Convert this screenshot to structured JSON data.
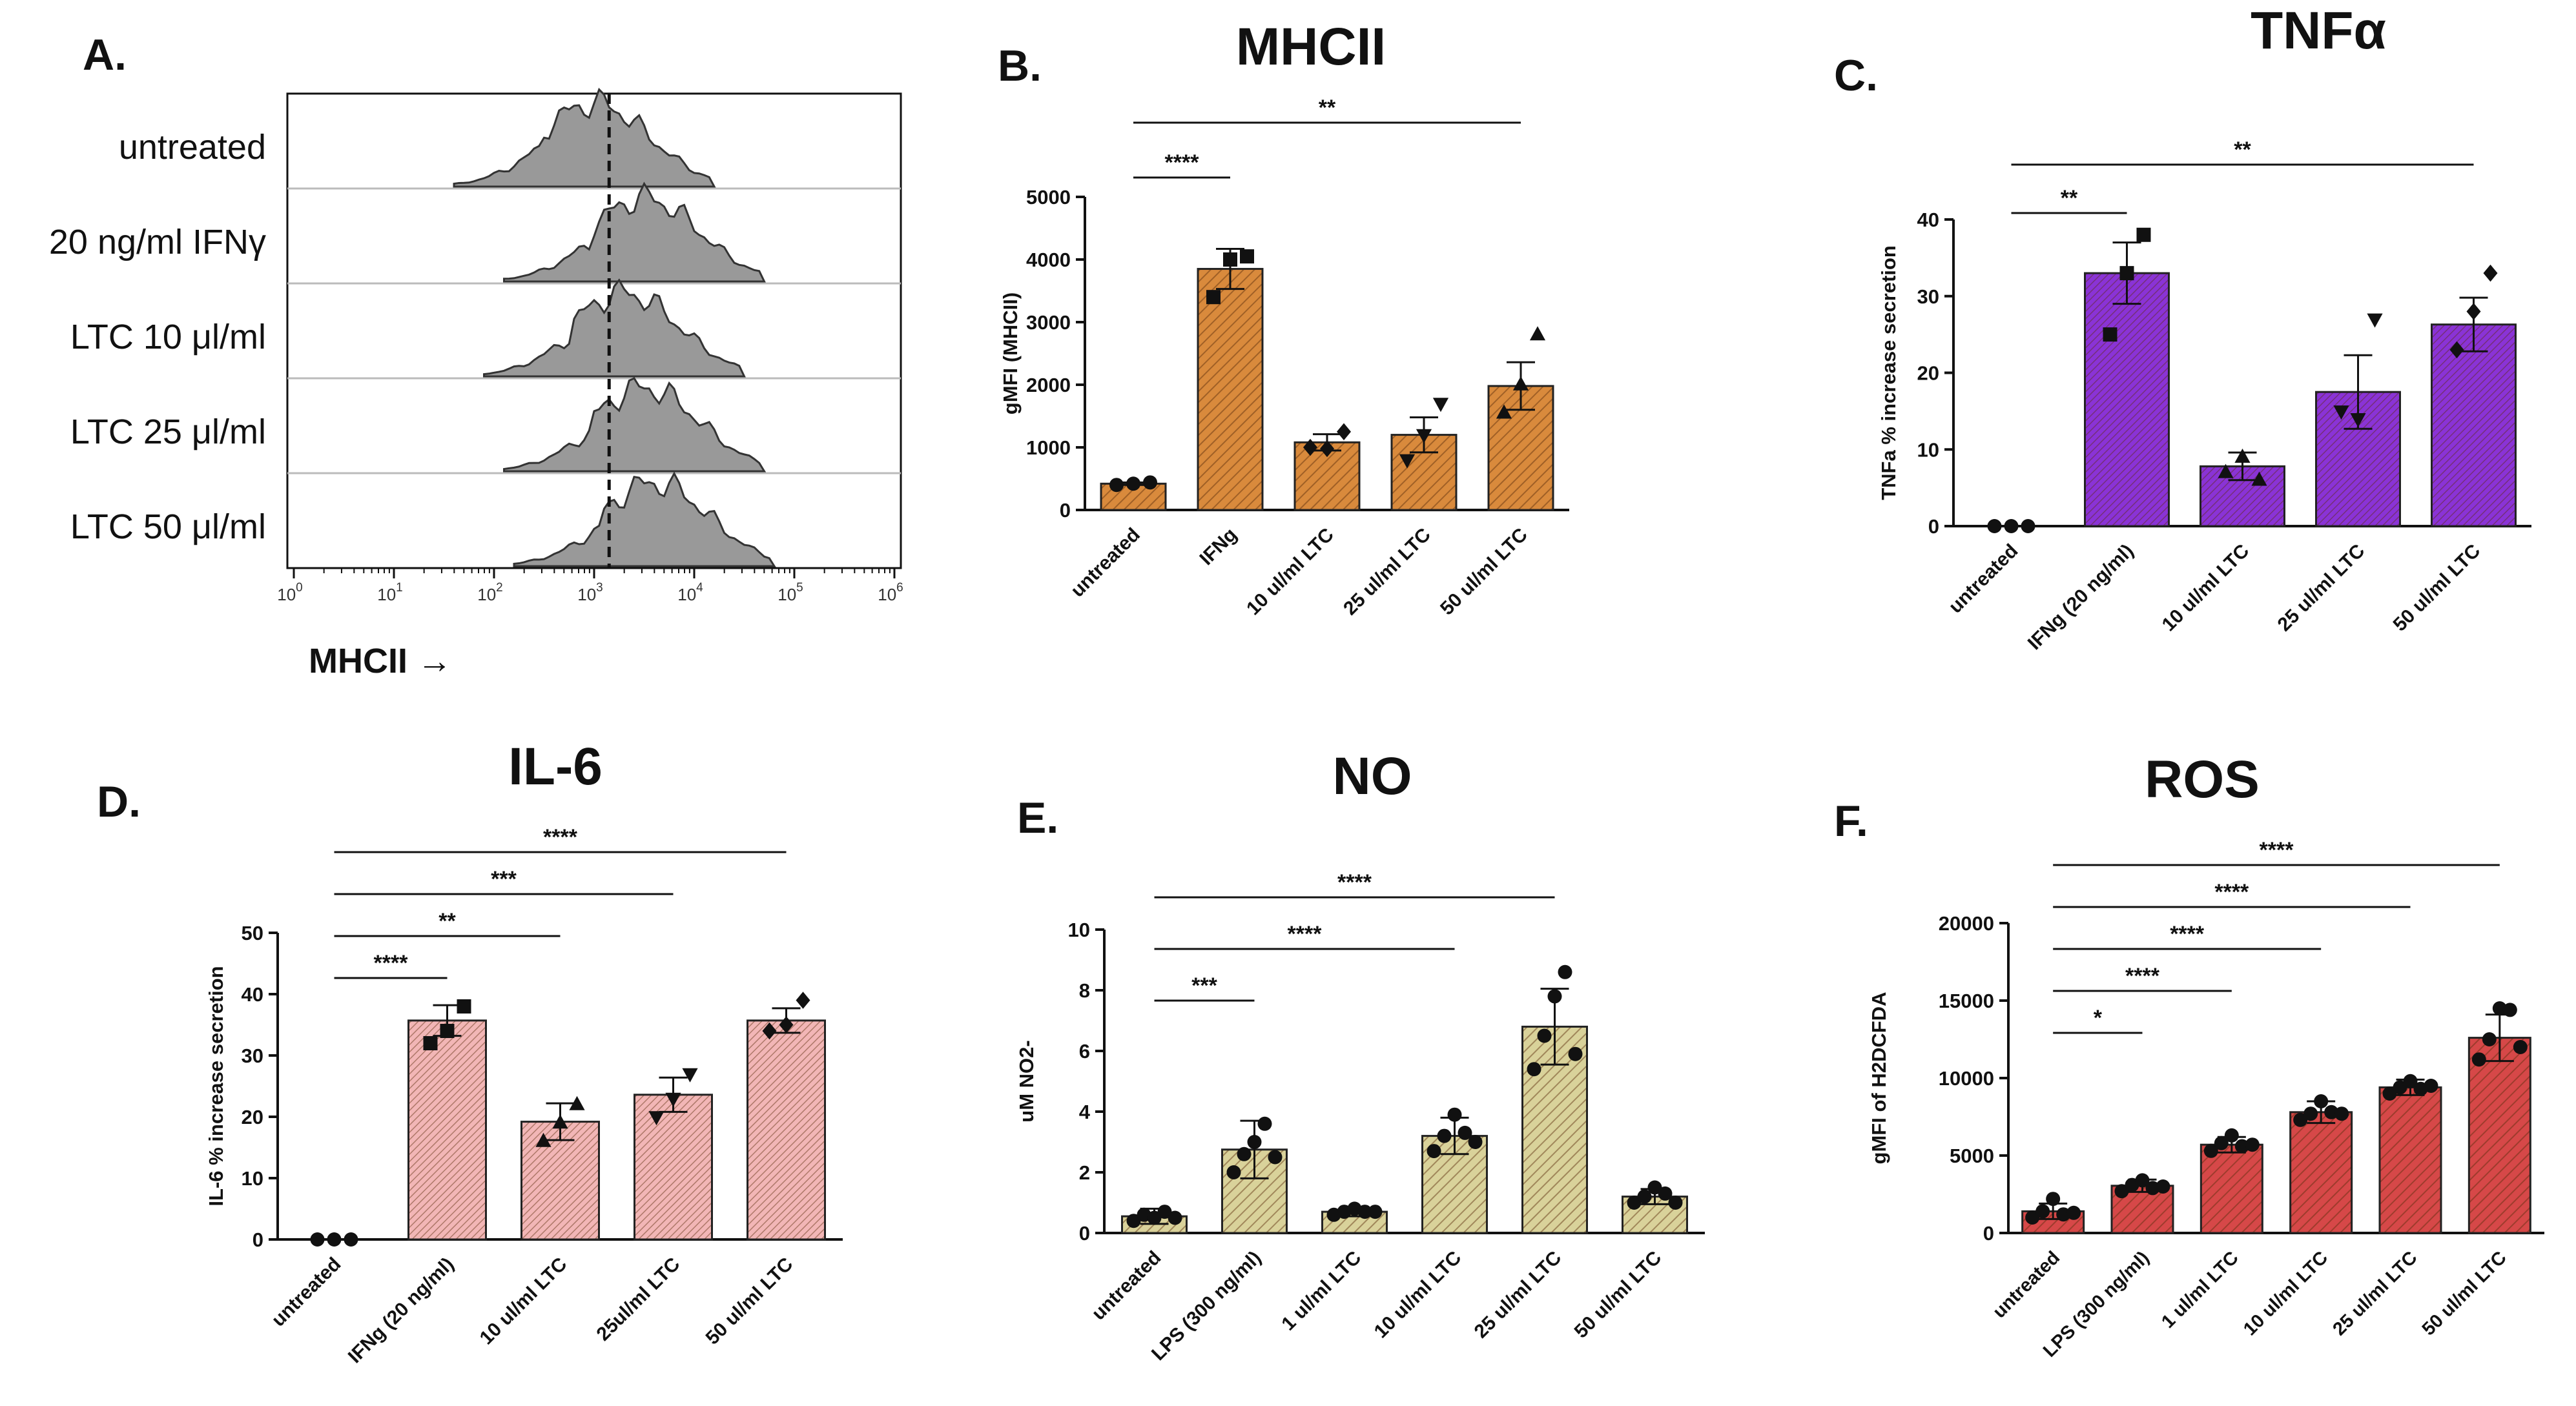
{
  "figure_title": "Macrophage activation panels A–F",
  "histogram": {
    "panel_label": "A.",
    "xlabel": "MHCII →",
    "rows": [
      {
        "label": "untreated",
        "peak_log": 3.0
      },
      {
        "label": "20 ng/ml IFNγ",
        "peak_log": 3.5
      },
      {
        "label": "LTC 10 μl/ml",
        "peak_log": 3.3
      },
      {
        "label": "LTC 25 μl/ml",
        "peak_log": 3.5
      },
      {
        "label": "LTC 50 μl/ml",
        "peak_log": 3.6
      }
    ],
    "ticks": [
      {
        "base": "10",
        "exp": "0",
        "value": 0
      },
      {
        "base": "10",
        "exp": "1",
        "value": 1
      },
      {
        "base": "10",
        "exp": "2",
        "value": 2
      },
      {
        "base": "10",
        "exp": "3",
        "value": 3
      },
      {
        "base": "10",
        "exp": "4",
        "value": 4
      },
      {
        "base": "10",
        "exp": "5",
        "value": 5
      },
      {
        "base": "10",
        "exp": "6",
        "value": 6
      }
    ],
    "cutoff_log": 3.15
  },
  "chart_data": [
    {
      "id": "B",
      "panel_label": "B.",
      "type": "bar",
      "title": "MHCII",
      "ylabel": "gMFI (MHCII)",
      "xlabel": "",
      "ylim": [
        0,
        5000
      ],
      "yticks": [
        "0",
        "1000",
        "2000",
        "3000",
        "4000",
        "5000"
      ],
      "color": "#d98a3c",
      "categories": [
        "untreated",
        "IFNg",
        "10 ul/ml LTC",
        "25 ul/ml LTC",
        "50 ul/ml LTC"
      ],
      "values": [
        420,
        3850,
        1080,
        1200,
        1980
      ],
      "errors": [
        20,
        320,
        130,
        280,
        380
      ],
      "points": [
        [
          400,
          420,
          440
        ],
        [
          3400,
          4000,
          4050
        ],
        [
          1000,
          980,
          1250
        ],
        [
          800,
          1200,
          1700
        ],
        [
          1550,
          2000,
          2800
        ]
      ],
      "markers": [
        "circle",
        "square",
        "diamond",
        "triangle-down",
        "triangle"
      ],
      "significance": [
        {
          "label": "****",
          "from": 0,
          "to": 1,
          "level": 0
        },
        {
          "label": "**",
          "from": 0,
          "to": 4,
          "level": 1
        }
      ]
    },
    {
      "id": "C",
      "panel_label": "C.",
      "type": "bar",
      "title": "TNFα",
      "ylabel": "TNFa % increase secretion",
      "xlabel": "",
      "ylim": [
        0,
        40
      ],
      "yticks": [
        "0",
        "10",
        "20",
        "30",
        "40"
      ],
      "color": "#8a33d6",
      "categories": [
        "untreated",
        "IFNg (20 ng/ml)",
        "10 ul/ml LTC",
        "25 ul/ml LTC",
        "50 ul/ml LTC"
      ],
      "values": [
        0,
        33,
        7.8,
        17.5,
        26.3
      ],
      "errors": [
        0,
        4,
        1.8,
        4.8,
        3.5
      ],
      "points": [
        [
          0,
          0,
          0
        ],
        [
          25,
          33,
          38
        ],
        [
          7,
          9,
          6
        ],
        [
          15,
          14,
          27
        ],
        [
          23,
          28,
          33
        ]
      ],
      "markers": [
        "circle",
        "square",
        "triangle",
        "triangle-down",
        "diamond"
      ],
      "significance": [
        {
          "label": "**",
          "from": 0,
          "to": 1,
          "level": 0
        },
        {
          "label": "**",
          "from": 0,
          "to": 4,
          "level": 1
        }
      ]
    },
    {
      "id": "D",
      "panel_label": "D.",
      "type": "bar",
      "title": "IL-6",
      "ylabel": "IL-6 % increase secretion",
      "xlabel": "",
      "ylim": [
        0,
        50
      ],
      "yticks": [
        "0",
        "10",
        "20",
        "30",
        "40",
        "50"
      ],
      "color": "#f2b6b6",
      "categories": [
        "untreated",
        "IFNg (20 ng/ml)",
        "10 ul/ml LTC",
        "25ul/ml LTC",
        "50 ul/ml LTC"
      ],
      "values": [
        0,
        35.7,
        19.2,
        23.6,
        35.7
      ],
      "errors": [
        0,
        2.5,
        3,
        2.8,
        2
      ],
      "points": [
        [
          0,
          0,
          0
        ],
        [
          32,
          34,
          38
        ],
        [
          16,
          19,
          22
        ],
        [
          20,
          23,
          27
        ],
        [
          34,
          35,
          39
        ]
      ],
      "markers": [
        "circle",
        "square",
        "triangle",
        "triangle-down",
        "diamond"
      ],
      "significance": [
        {
          "label": "****",
          "from": 0,
          "to": 1,
          "level": 0
        },
        {
          "label": "**",
          "from": 0,
          "to": 2,
          "level": 1
        },
        {
          "label": "***",
          "from": 0,
          "to": 3,
          "level": 2
        },
        {
          "label": "****",
          "from": 0,
          "to": 4,
          "level": 3
        }
      ]
    },
    {
      "id": "E",
      "panel_label": "E.",
      "type": "bar",
      "title": "NO",
      "ylabel": "uM NO2-",
      "xlabel": "",
      "ylim": [
        0,
        10
      ],
      "yticks": [
        "0",
        "2",
        "4",
        "6",
        "8",
        "10"
      ],
      "color": "#d9d29a",
      "categories": [
        "untreated",
        "LPS (300 ng/ml)",
        "1 ul/ml LTC",
        "10 ul/ml LTC",
        "25 ul/ml LTC",
        "50 ul/ml LTC"
      ],
      "values": [
        0.55,
        2.75,
        0.7,
        3.2,
        6.8,
        1.2
      ],
      "errors": [
        0.25,
        0.95,
        0.15,
        0.6,
        1.25,
        0.25
      ],
      "points": [
        [
          0.4,
          0.6,
          0.5,
          0.7,
          0.5
        ],
        [
          2,
          2.6,
          3,
          3.6,
          2.5
        ],
        [
          0.6,
          0.7,
          0.8,
          0.7,
          0.7
        ],
        [
          2.7,
          3.2,
          3.9,
          3.3,
          3
        ],
        [
          5.4,
          6.5,
          7.8,
          8.6,
          5.9
        ],
        [
          1,
          1.2,
          1.5,
          1.3,
          1
        ]
      ],
      "markers": [
        "circle",
        "circle",
        "circle",
        "circle",
        "circle",
        "circle"
      ],
      "significance": [
        {
          "label": "***",
          "from": 0,
          "to": 1,
          "level": 0
        },
        {
          "label": "****",
          "from": 0,
          "to": 3,
          "level": 1
        },
        {
          "label": "****",
          "from": 0,
          "to": 4,
          "level": 2
        }
      ]
    },
    {
      "id": "F",
      "panel_label": "F.",
      "type": "bar",
      "title": "ROS",
      "ylabel": "gMFI of H2DCFDA",
      "xlabel": "",
      "ylim": [
        0,
        20000
      ],
      "yticks": [
        "0",
        "5000",
        "10000",
        "15000",
        "20000"
      ],
      "color": "#d64848",
      "categories": [
        "untreated",
        "LPS (300 ng/ml)",
        "1 ul/ml LTC",
        "10 ul/ml LTC",
        "25 ul/ml LTC",
        "50 ul/ml LTC"
      ],
      "values": [
        1400,
        3050,
        5700,
        7800,
        9400,
        12600
      ],
      "errors": [
        500,
        400,
        500,
        700,
        500,
        1500
      ],
      "points": [
        [
          1000,
          1400,
          2200,
          1200,
          1300
        ],
        [
          2700,
          3100,
          3400,
          2900,
          3000
        ],
        [
          5300,
          5800,
          6300,
          5600,
          5700
        ],
        [
          7300,
          7700,
          8500,
          7800,
          7700
        ],
        [
          9000,
          9400,
          9800,
          9300,
          9500
        ],
        [
          11200,
          12500,
          14500,
          14400,
          12000
        ]
      ],
      "markers": [
        "circle",
        "circle",
        "circle",
        "circle",
        "circle",
        "circle"
      ],
      "significance": [
        {
          "label": "*",
          "from": 0,
          "to": 1,
          "level": 0
        },
        {
          "label": "****",
          "from": 0,
          "to": 2,
          "level": 1
        },
        {
          "label": "****",
          "from": 0,
          "to": 3,
          "level": 2
        },
        {
          "label": "****",
          "from": 0,
          "to": 4,
          "level": 3
        },
        {
          "label": "****",
          "from": 0,
          "to": 5,
          "level": 4
        }
      ]
    }
  ]
}
